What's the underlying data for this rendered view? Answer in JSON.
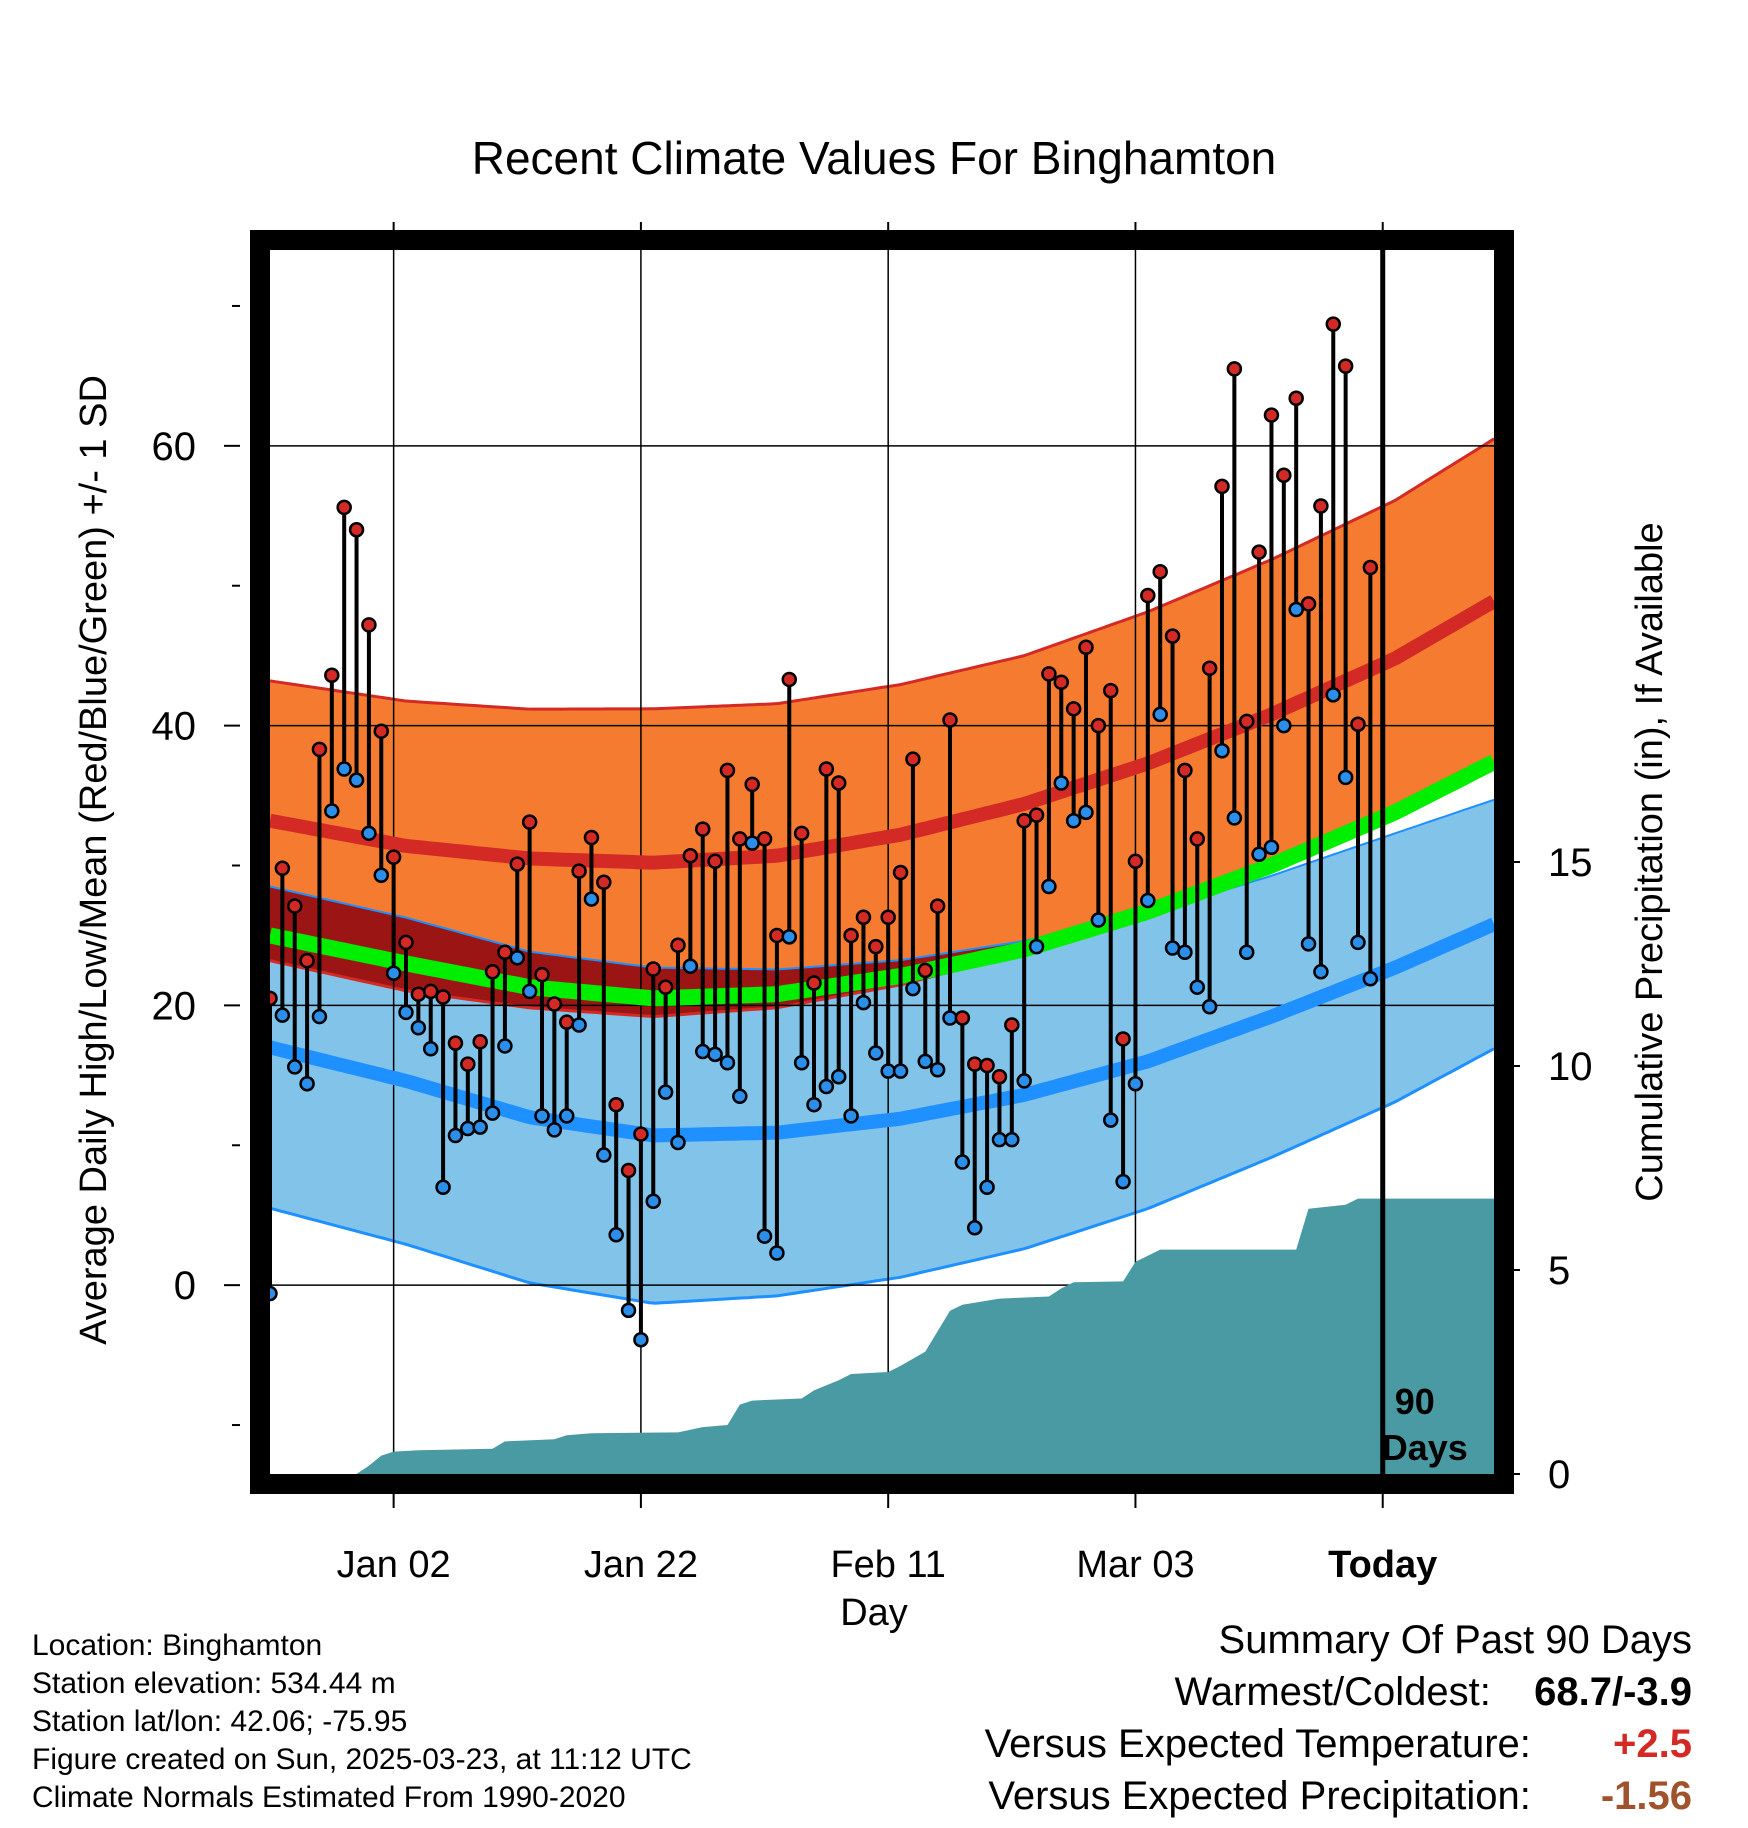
{
  "chart_data": {
    "type": "line",
    "title": "Recent Climate Values For Binghamton",
    "xlabel": "Day",
    "ylabel": "Average Daily High/Low/Mean (Red/Blue/Green) +/- 1 SD",
    "y2label": "Cumulative Precipitation (in), If Available",
    "x_tick_labels": [
      "Jan 02",
      "Jan 22",
      "Feb 11",
      "Mar 03",
      "Today"
    ],
    "y_ticks": [
      "0",
      "20",
      "40",
      "60"
    ],
    "y2_ticks": [
      "0",
      "5",
      "10",
      "15"
    ],
    "ylim": [
      -13.5,
      74
    ],
    "y2lim": [
      0,
      15
    ],
    "today_label": "90 Days",
    "start_date": "2024-12-23",
    "x_range": [
      "2024-12-23",
      "2025-04-01"
    ],
    "colors": {
      "high_band": "#f47b30",
      "high_line": "#d42a26",
      "low_band": "#82c3ea",
      "low_line": "#1e90ff",
      "overlap": "#9b1515",
      "mean_line": "#00ee00",
      "precip": "#4a9aa3",
      "high_dot": "#d42a26",
      "low_dot": "#2b8ee8"
    },
    "normal_high": [
      [
        "2024-12-23",
        33.2
      ],
      [
        "2025-01-03",
        31.4
      ],
      [
        "2025-01-13",
        30.5
      ],
      [
        "2025-01-23",
        30.2
      ],
      [
        "2025-02-02",
        30.7
      ],
      [
        "2025-02-12",
        32.2
      ],
      [
        "2025-02-22",
        34.4
      ],
      [
        "2025-03-04",
        37.3
      ],
      [
        "2025-03-14",
        40.8
      ],
      [
        "2025-03-24",
        44.8
      ],
      [
        "2025-04-01",
        48.9
      ]
    ],
    "high_sd": [
      [
        "2024-12-23",
        10.0
      ],
      [
        "2025-01-23",
        11.0
      ],
      [
        "2025-02-22",
        10.6
      ],
      [
        "2025-03-24",
        11.3
      ],
      [
        "2025-04-01",
        11.6
      ]
    ],
    "normal_low": [
      [
        "2024-12-23",
        17.0
      ],
      [
        "2025-01-03",
        14.6
      ],
      [
        "2025-01-13",
        12.0
      ],
      [
        "2025-01-23",
        10.7
      ],
      [
        "2025-02-02",
        10.9
      ],
      [
        "2025-02-12",
        11.9
      ],
      [
        "2025-02-22",
        13.6
      ],
      [
        "2025-03-04",
        16.0
      ],
      [
        "2025-03-14",
        19.2
      ],
      [
        "2025-03-24",
        22.7
      ],
      [
        "2025-04-01",
        25.8
      ]
    ],
    "low_sd": [
      [
        "2024-12-23",
        11.5
      ],
      [
        "2025-01-23",
        12.0
      ],
      [
        "2025-02-22",
        11.0
      ],
      [
        "2025-03-24",
        9.6
      ],
      [
        "2025-04-01",
        8.9
      ]
    ],
    "normal_mean": [
      [
        "2024-12-23",
        25.0
      ],
      [
        "2025-01-03",
        23.0
      ],
      [
        "2025-01-13",
        21.3
      ],
      [
        "2025-01-23",
        20.5
      ],
      [
        "2025-02-02",
        20.8
      ],
      [
        "2025-02-12",
        22.1
      ],
      [
        "2025-02-22",
        24.0
      ],
      [
        "2025-03-04",
        26.7
      ],
      [
        "2025-03-14",
        30.0
      ],
      [
        "2025-03-24",
        33.8
      ],
      [
        "2025-04-01",
        37.4
      ]
    ],
    "daily_high": [
      20.5,
      29.8,
      27.1,
      23.2,
      38.3,
      43.6,
      55.6,
      54.0,
      47.2,
      39.6,
      30.6,
      24.5,
      20.8,
      21.0,
      20.6,
      17.3,
      15.8,
      17.4,
      22.4,
      23.8,
      30.1,
      33.1,
      22.2,
      20.1,
      18.8,
      29.6,
      32.0,
      28.8,
      12.9,
      8.2,
      10.8,
      22.6,
      21.3,
      24.3,
      30.7,
      32.6,
      30.3,
      36.8,
      31.9,
      35.8,
      31.9,
      25.0,
      43.3,
      32.3,
      21.6,
      36.9,
      35.9,
      25.0,
      26.3,
      24.2,
      26.3,
      29.5,
      37.6,
      22.5,
      27.1,
      40.4,
      19.1,
      15.8,
      15.7,
      14.9,
      18.6,
      33.2,
      33.6,
      43.7,
      43.1,
      41.2,
      45.6,
      40.0,
      42.5,
      17.6,
      30.3,
      49.3,
      51.0,
      46.4,
      36.8,
      31.9,
      44.1,
      57.1,
      65.5,
      40.3,
      52.4,
      62.2,
      57.9,
      63.4,
      48.7,
      55.7,
      68.7,
      65.7,
      40.1,
      51.3
    ],
    "daily_low": [
      -0.6,
      19.3,
      15.6,
      14.4,
      19.2,
      33.9,
      36.9,
      36.1,
      32.3,
      29.3,
      22.3,
      19.5,
      18.4,
      16.9,
      7.0,
      10.7,
      11.2,
      11.3,
      12.3,
      17.1,
      23.4,
      21.0,
      12.1,
      11.1,
      12.1,
      18.6,
      27.6,
      9.3,
      3.6,
      -1.8,
      -3.9,
      6.0,
      13.8,
      10.2,
      22.8,
      16.7,
      16.5,
      15.9,
      13.5,
      31.6,
      3.5,
      2.3,
      24.9,
      15.9,
      12.9,
      14.2,
      14.9,
      12.1,
      20.2,
      16.6,
      15.3,
      15.3,
      21.2,
      16.0,
      15.4,
      19.1,
      8.8,
      4.1,
      7.0,
      10.4,
      10.4,
      14.6,
      24.2,
      28.5,
      35.9,
      33.2,
      33.8,
      26.1,
      11.8,
      7.4,
      14.4,
      27.5,
      40.8,
      24.1,
      23.8,
      21.3,
      19.9,
      38.2,
      33.4,
      23.8,
      30.8,
      31.3,
      40.0,
      48.3,
      24.4,
      22.4,
      42.2,
      36.3,
      24.5,
      21.9
    ],
    "cum_precip": [
      [
        "2024-12-23",
        0.0
      ],
      [
        "2024-12-30",
        0.0
      ],
      [
        "2024-12-31",
        0.2
      ],
      [
        "2025-01-01",
        0.45
      ],
      [
        "2025-01-02",
        0.55
      ],
      [
        "2025-01-04",
        0.58
      ],
      [
        "2025-01-10",
        0.62
      ],
      [
        "2025-01-11",
        0.8
      ],
      [
        "2025-01-15",
        0.85
      ],
      [
        "2025-01-16",
        0.95
      ],
      [
        "2025-01-18",
        1.0
      ],
      [
        "2025-01-25",
        1.02
      ],
      [
        "2025-01-27",
        1.15
      ],
      [
        "2025-01-29",
        1.2
      ],
      [
        "2025-01-30",
        1.7
      ],
      [
        "2025-01-31",
        1.8
      ],
      [
        "2025-02-04",
        1.85
      ],
      [
        "2025-02-05",
        2.05
      ],
      [
        "2025-02-07",
        2.3
      ],
      [
        "2025-02-08",
        2.45
      ],
      [
        "2025-02-11",
        2.5
      ],
      [
        "2025-02-12",
        2.65
      ],
      [
        "2025-02-14",
        3.0
      ],
      [
        "2025-02-16",
        4.0
      ],
      [
        "2025-02-17",
        4.15
      ],
      [
        "2025-02-20",
        4.3
      ],
      [
        "2025-02-24",
        4.35
      ],
      [
        "2025-02-25",
        4.55
      ],
      [
        "2025-02-26",
        4.7
      ],
      [
        "2025-03-02",
        4.72
      ],
      [
        "2025-03-03",
        5.2
      ],
      [
        "2025-03-05",
        5.5
      ],
      [
        "2025-03-16",
        5.5
      ],
      [
        "2025-03-17",
        6.5
      ],
      [
        "2025-03-20",
        6.6
      ],
      [
        "2025-03-21",
        6.75
      ],
      [
        "2025-04-01",
        6.75
      ]
    ]
  },
  "info": {
    "location": "Location: Binghamton",
    "elevation": "Station elevation: 534.44 m",
    "latlon": "Station lat/lon: 42.06; -75.95",
    "created": "Figure created on Sun, 2025-03-23, at 11:12 UTC",
    "normals": "Climate Normals Estimated From 1990-2020"
  },
  "summary": {
    "heading": "Summary Of Past 90 Days",
    "warm_cold_label": "Warmest/Coldest:",
    "warm_cold_value": "68.7/-3.9",
    "temp_label": "Versus Expected Temperature:",
    "temp_value": "+2.5",
    "temp_color": "#d42a26",
    "precip_label": "Versus Expected Precipitation:",
    "precip_value": "-1.56",
    "precip_color": "#a0522d"
  }
}
